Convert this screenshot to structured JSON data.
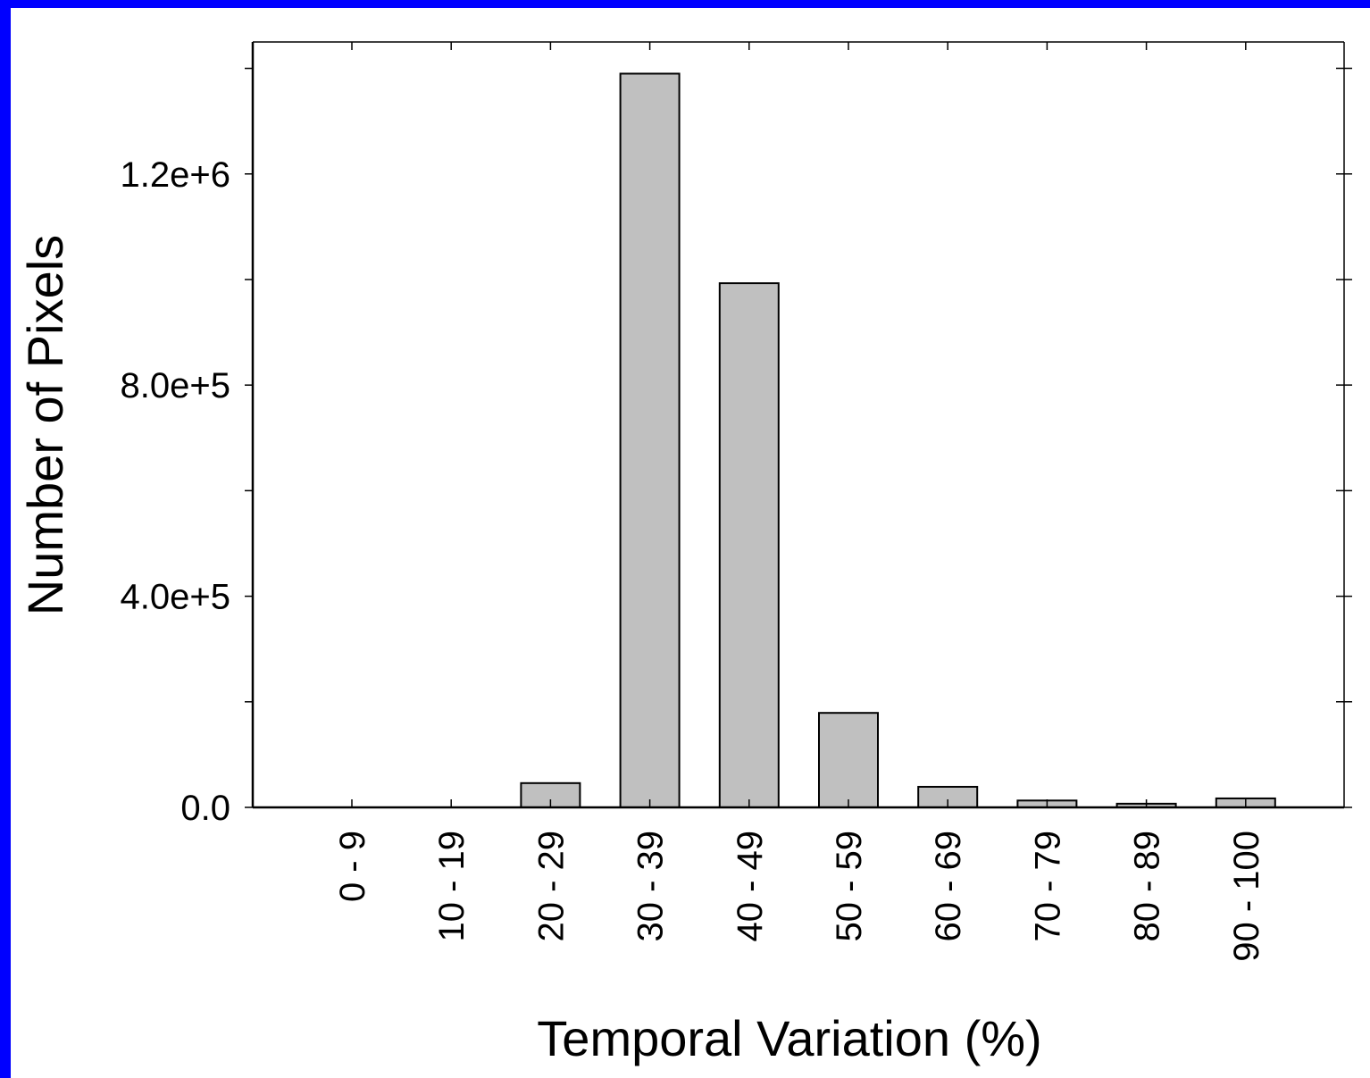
{
  "chart_data": {
    "type": "bar",
    "title": "",
    "xlabel": "Temporal Variation (%)",
    "ylabel": "Number of Pixels",
    "categories": [
      "0 - 9",
      "10 - 19",
      "20 - 29",
      "30 - 39",
      "40 - 49",
      "50 - 59",
      "60 - 69",
      "70 - 79",
      "80 - 89",
      "90 - 100"
    ],
    "values": [
      0,
      0,
      46000,
      1390000,
      993000,
      179000,
      39000,
      13000,
      7000,
      17000
    ],
    "ylim": [
      0,
      1450000
    ],
    "yticks": [
      0,
      400000,
      800000,
      1200000
    ],
    "ytick_labels": [
      "0.0",
      "4.0e+5",
      "8.0e+5",
      "1.2e+6"
    ],
    "grid": false,
    "legend": "none",
    "bar_color": "#c0c0c0",
    "bar_edge_color": "#000000",
    "background_color": "#0000ff"
  }
}
